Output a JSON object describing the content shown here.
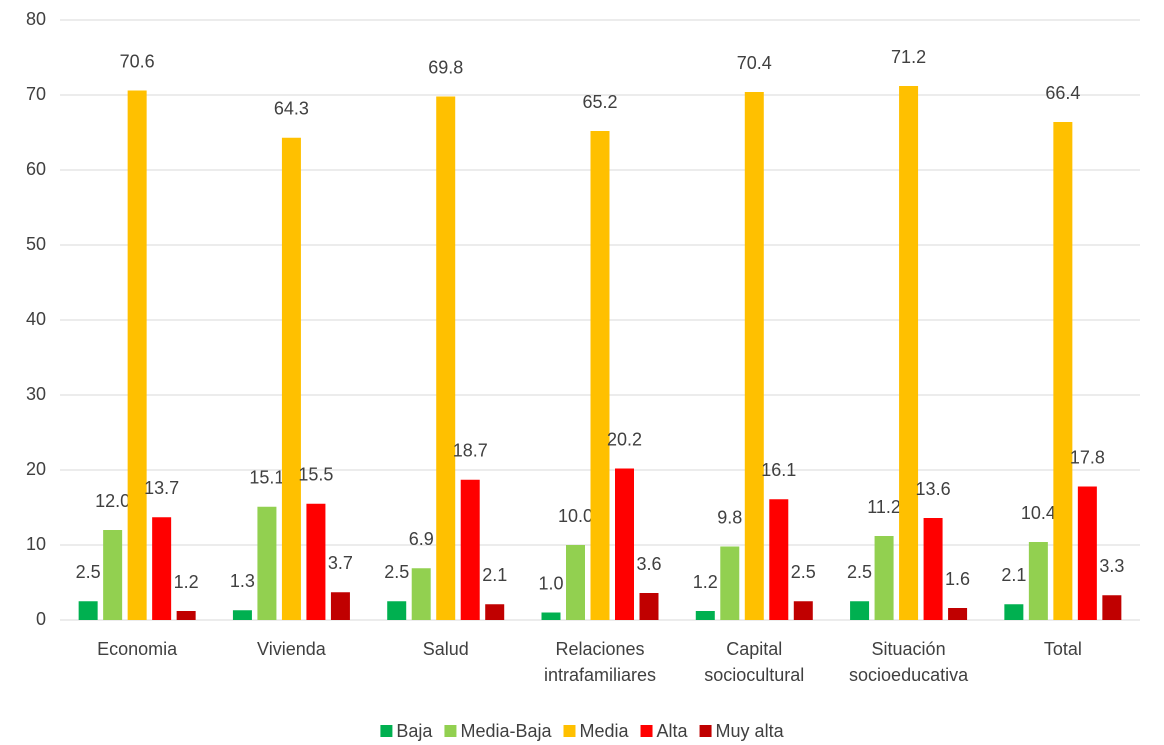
{
  "chart_data": {
    "type": "bar",
    "categories": [
      "Economia",
      "Vivienda",
      "Salud",
      "Relaciones intrafamiliares",
      "Capital sociocultural",
      "Situación socioeducativa",
      "Total"
    ],
    "series": [
      {
        "name": "Baja",
        "color": "#00b050",
        "values": [
          2.5,
          1.3,
          2.5,
          1.0,
          1.2,
          2.5,
          2.1
        ],
        "value_labels": [
          "2.5",
          "1.3",
          "2.5",
          "1.0",
          "1.2",
          "2.5",
          "2.1"
        ]
      },
      {
        "name": "Media-Baja",
        "color": "#92d050",
        "values": [
          12.0,
          15.1,
          6.9,
          10.0,
          9.8,
          11.2,
          10.4
        ],
        "value_labels": [
          "12.0",
          "15.1",
          "6.9",
          "10.0",
          "9.8",
          "11.2",
          "10.4"
        ]
      },
      {
        "name": "Media",
        "color": "#ffc000",
        "values": [
          70.6,
          64.3,
          69.8,
          65.2,
          70.4,
          71.2,
          66.4
        ],
        "value_labels": [
          "70.6",
          "64.3",
          "69.8",
          "65.2",
          "70.4",
          "71.2",
          "66.4"
        ]
      },
      {
        "name": "Alta",
        "color": "#ff0000",
        "values": [
          13.7,
          15.5,
          18.7,
          20.2,
          16.1,
          13.6,
          17.8
        ],
        "value_labels": [
          "13.7",
          "15.5",
          "18.7",
          "20.2",
          "16.1",
          "13.6",
          "17.8"
        ]
      },
      {
        "name": "Muy alta",
        "color": "#c00000",
        "values": [
          1.2,
          3.7,
          2.1,
          3.6,
          2.5,
          1.6,
          3.3
        ],
        "value_labels": [
          "1.2",
          "3.7",
          "2.1",
          "3.6",
          "2.5",
          "1.6",
          "3.3"
        ]
      }
    ],
    "ylim": [
      0,
      80
    ],
    "yticks": [
      0,
      10,
      20,
      30,
      40,
      50,
      60,
      70,
      80
    ],
    "grid": true,
    "legend": "bottom"
  }
}
